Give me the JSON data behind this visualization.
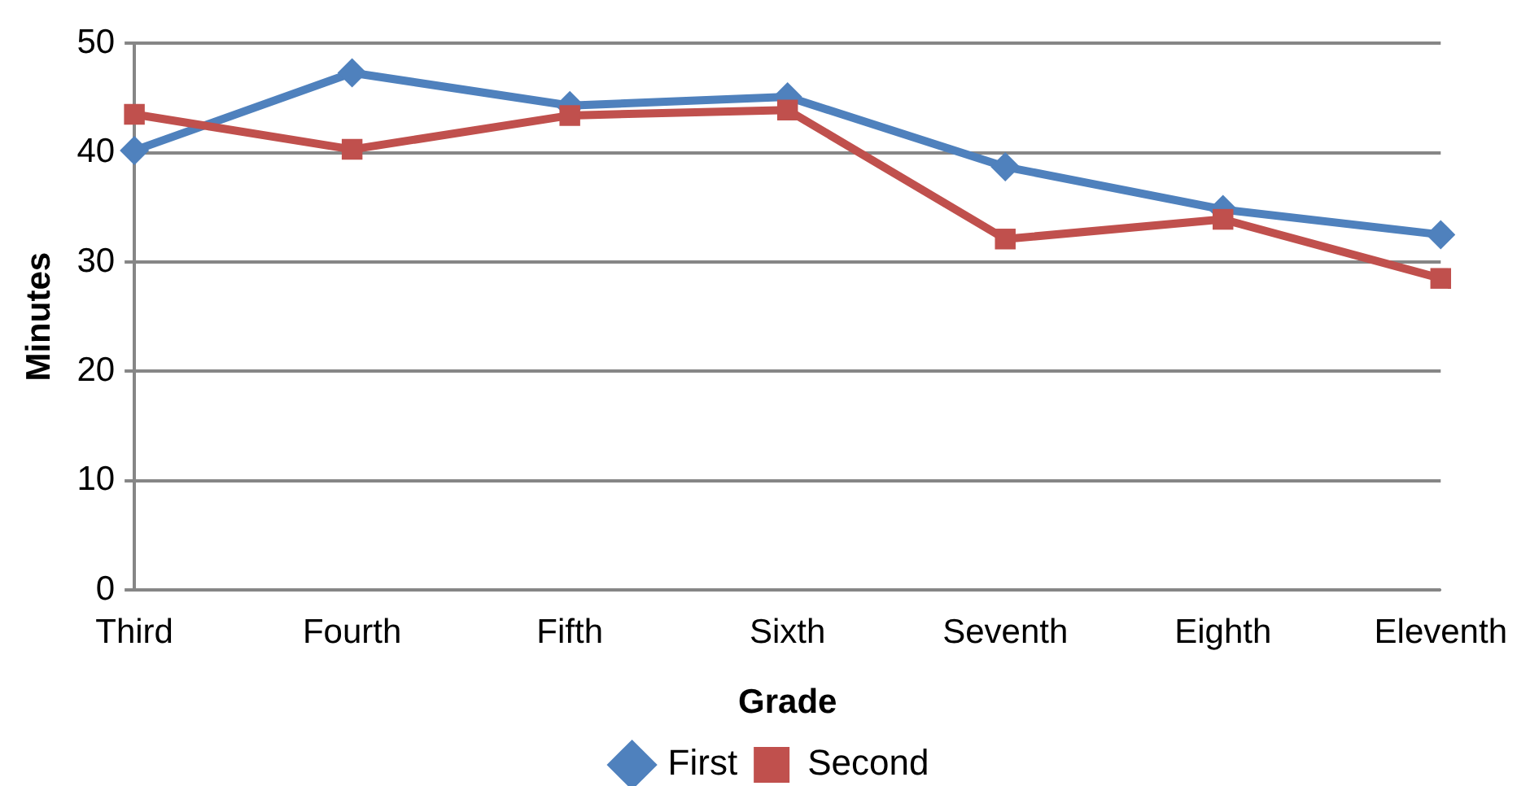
{
  "chart_data": {
    "type": "line",
    "xlabel": "Grade",
    "ylabel": "Minutes",
    "categories": [
      "Third",
      "Fourth",
      "Fifth",
      "Sixth",
      "Seventh",
      "Eighth",
      "Eleventh"
    ],
    "series": [
      {
        "name": "First",
        "color": "#4f81bd",
        "marker": "diamond",
        "values": [
          40.2,
          47.3,
          44.3,
          45.1,
          38.7,
          34.8,
          32.5
        ]
      },
      {
        "name": "Second",
        "color": "#c0504d",
        "marker": "square",
        "values": [
          43.5,
          40.3,
          43.4,
          43.9,
          32.1,
          33.9,
          28.5
        ]
      }
    ],
    "ylim": [
      0,
      50
    ],
    "yticks": [
      0,
      10,
      20,
      30,
      40,
      50
    ],
    "grid": "y",
    "legend": "bottom",
    "line_style": "solid"
  }
}
